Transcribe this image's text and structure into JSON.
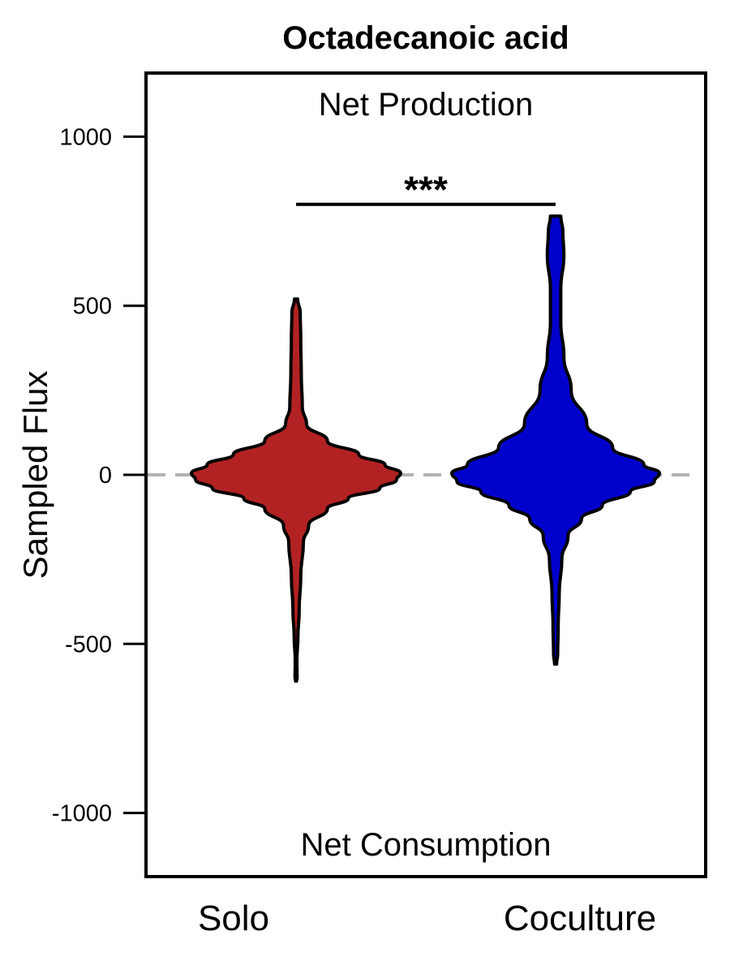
{
  "chart_data": {
    "type": "violin",
    "title": "Octadecanoic acid",
    "ylabel": "Sampled Flux",
    "xlabel": "",
    "ylim": [
      -1190,
      1190
    ],
    "yticks": [
      -1000,
      -500,
      0,
      500,
      1000
    ],
    "ytick_labels": [
      "-1000",
      "-500",
      "0",
      "500",
      "1000"
    ],
    "reference_line": {
      "y": 0,
      "style": "dashed",
      "color": "#b3b3b3"
    },
    "annotations": {
      "top": "Net Production",
      "bottom": "Net Consumption"
    },
    "significance": {
      "label": "***",
      "y": 800,
      "between": [
        "Solo",
        "Coculture"
      ]
    },
    "grid": false,
    "legend": "none",
    "categories": [
      "Solo",
      "Coculture"
    ],
    "series": [
      {
        "category": "Solo",
        "color": "#b22222",
        "min": -610,
        "max": 520,
        "profile": [
          [
            520,
            0.015
          ],
          [
            480,
            0.04
          ],
          [
            400,
            0.045
          ],
          [
            300,
            0.05
          ],
          [
            200,
            0.06
          ],
          [
            150,
            0.1
          ],
          [
            100,
            0.3
          ],
          [
            60,
            0.6
          ],
          [
            30,
            0.85
          ],
          [
            5,
            1.0
          ],
          [
            -15,
            0.96
          ],
          [
            -40,
            0.8
          ],
          [
            -70,
            0.5
          ],
          [
            -100,
            0.3
          ],
          [
            -150,
            0.12
          ],
          [
            -200,
            0.07
          ],
          [
            -300,
            0.045
          ],
          [
            -400,
            0.03
          ],
          [
            -480,
            0.018
          ],
          [
            -550,
            0.008
          ],
          [
            -600,
            0.01
          ],
          [
            -610,
            0.005
          ]
        ]
      },
      {
        "category": "Coculture",
        "color": "#0000cd",
        "min": -560,
        "max": 765,
        "profile": [
          [
            765,
            0.05
          ],
          [
            720,
            0.07
          ],
          [
            650,
            0.08
          ],
          [
            550,
            0.05
          ],
          [
            450,
            0.05
          ],
          [
            350,
            0.08
          ],
          [
            250,
            0.15
          ],
          [
            150,
            0.3
          ],
          [
            80,
            0.55
          ],
          [
            30,
            0.85
          ],
          [
            5,
            1.0
          ],
          [
            -20,
            0.95
          ],
          [
            -50,
            0.72
          ],
          [
            -90,
            0.45
          ],
          [
            -130,
            0.25
          ],
          [
            -180,
            0.12
          ],
          [
            -250,
            0.06
          ],
          [
            -350,
            0.035
          ],
          [
            -450,
            0.025
          ],
          [
            -530,
            0.02
          ],
          [
            -560,
            0.01
          ]
        ]
      }
    ]
  }
}
